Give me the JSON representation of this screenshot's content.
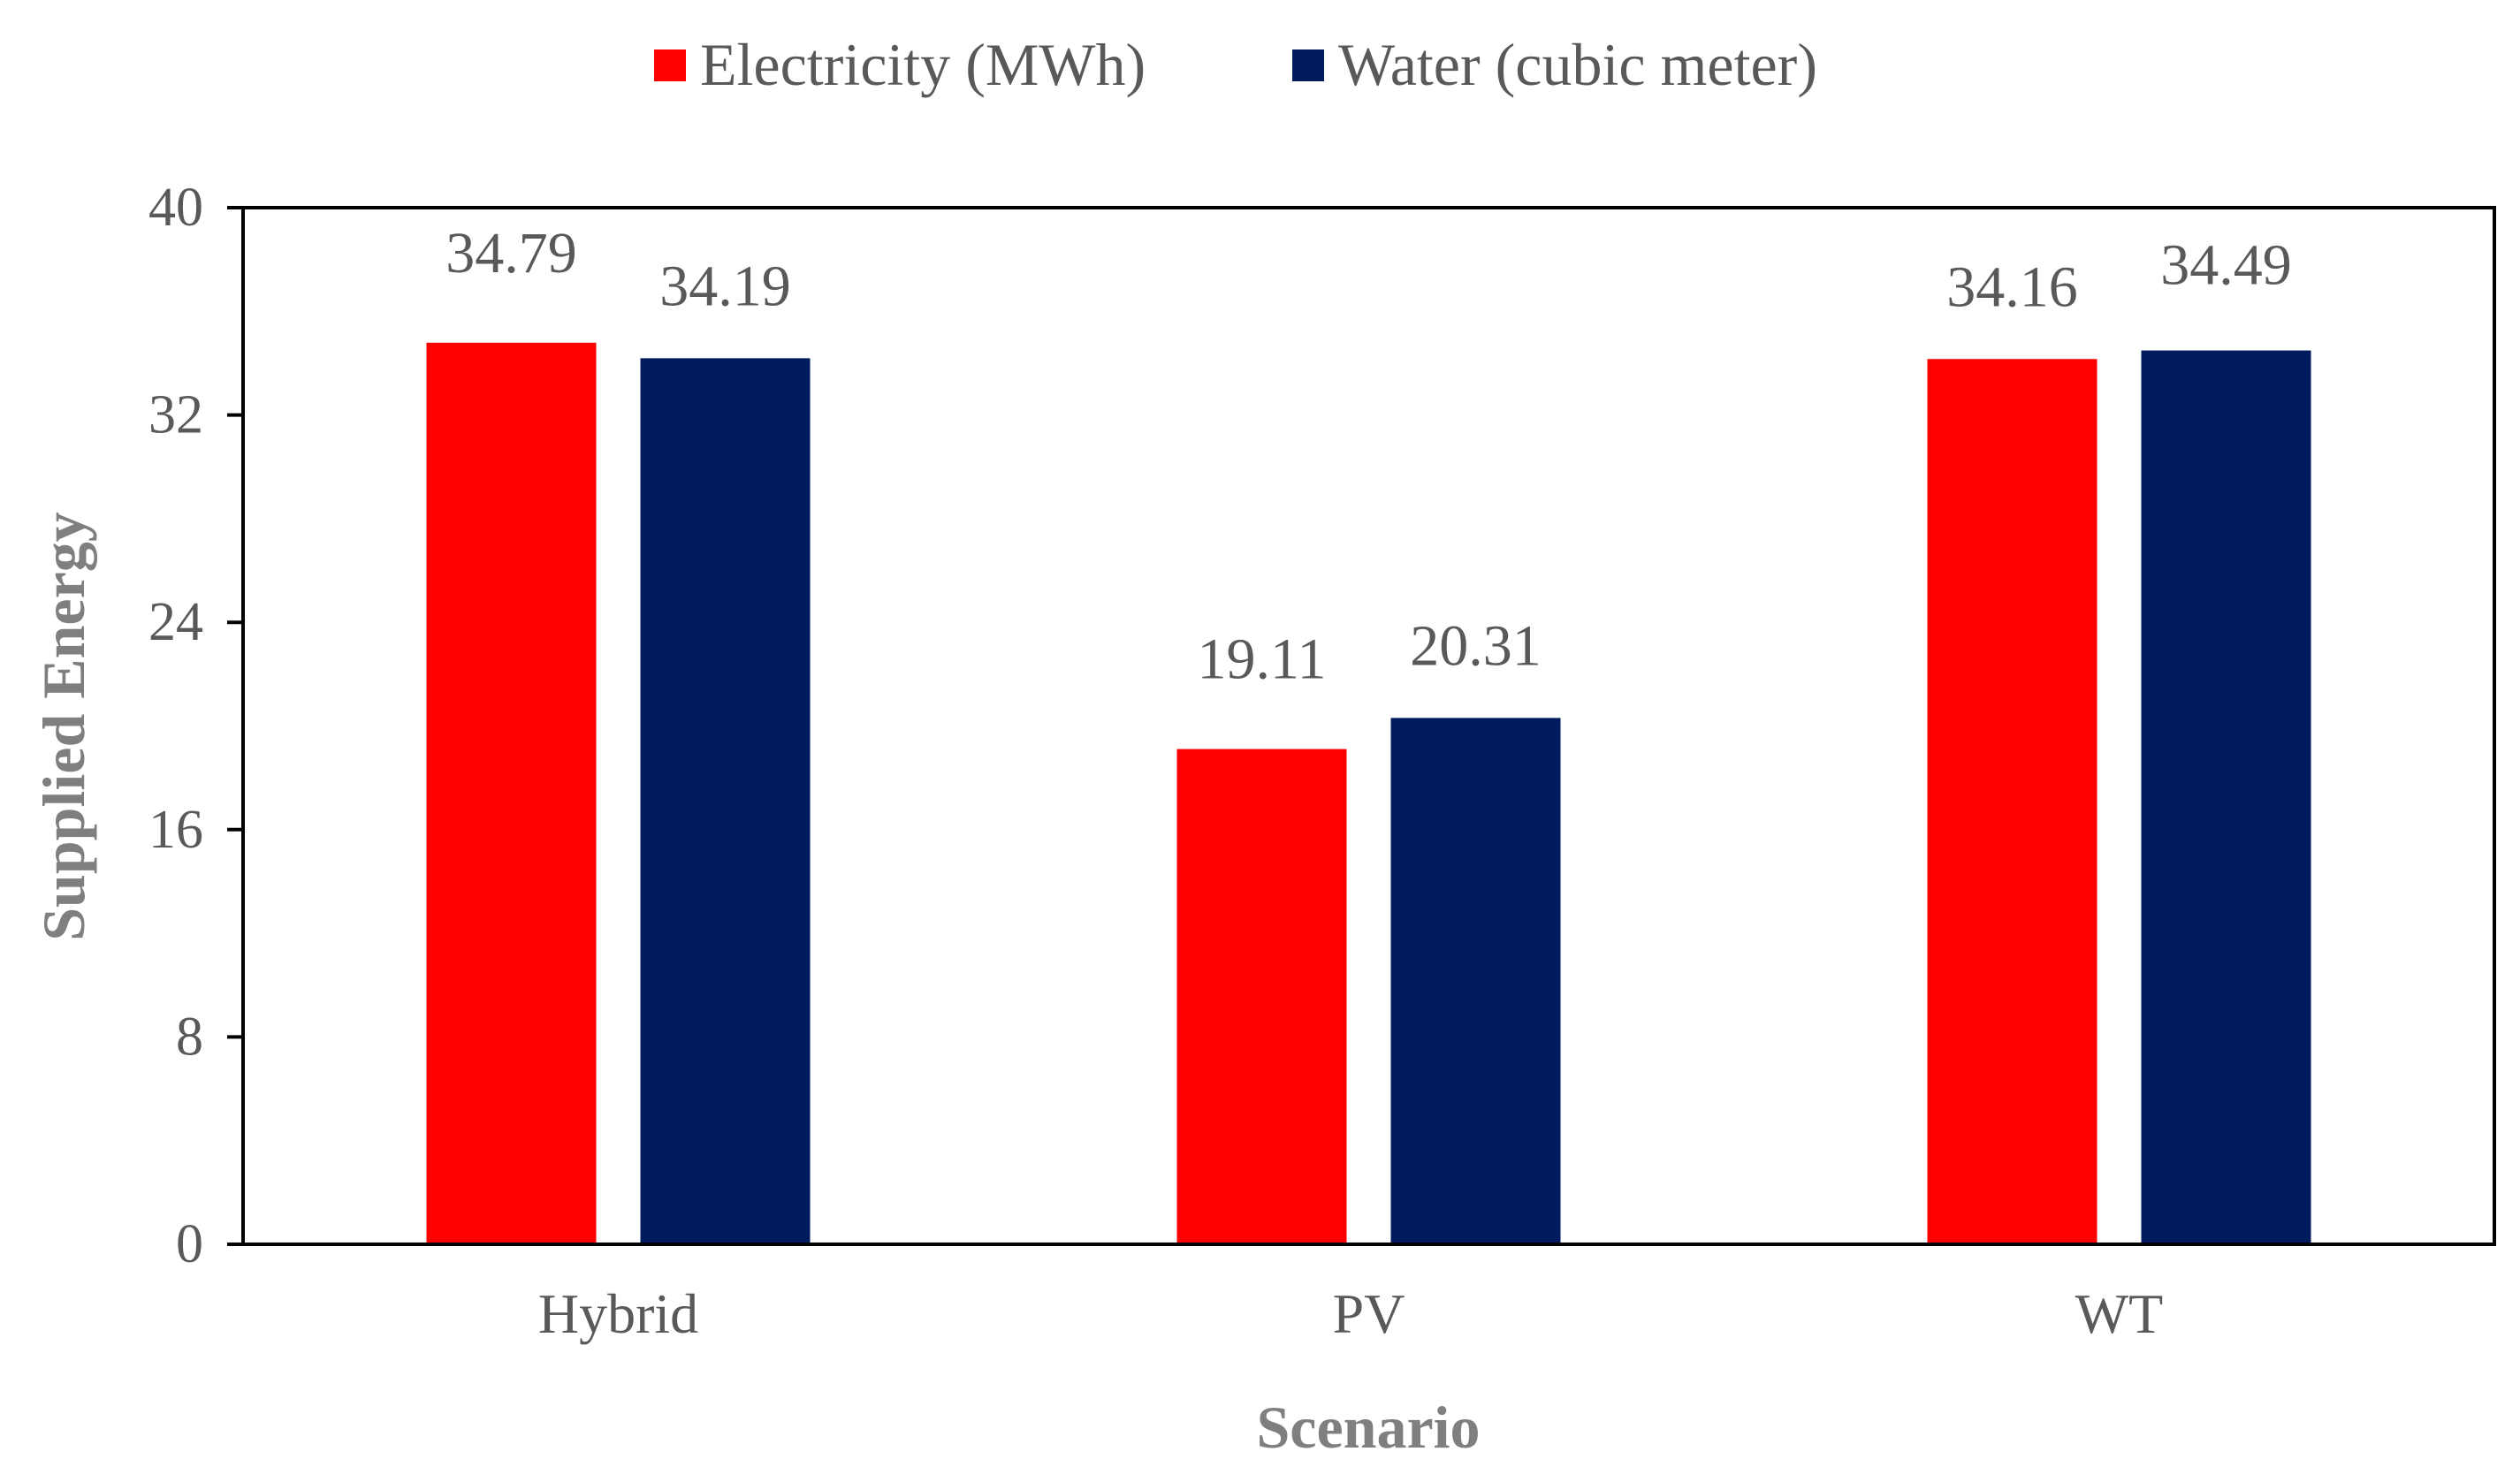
{
  "chart_data": {
    "type": "bar",
    "categories": [
      "Hybrid",
      "PV",
      "WT"
    ],
    "series": [
      {
        "name": "Electricity (MWh)",
        "color": "#ff0000",
        "values": [
          34.79,
          19.11,
          34.16
        ]
      },
      {
        "name": "Water (cubic meter)",
        "color": "#001a5e",
        "values": [
          34.19,
          20.31,
          34.49
        ]
      }
    ],
    "xlabel": "Scenario",
    "ylabel": "Supplied Energy",
    "ylim": [
      0,
      40
    ],
    "yticks": [
      0,
      8,
      16,
      24,
      32,
      40
    ],
    "grid": false,
    "legend_position": "top-center"
  }
}
